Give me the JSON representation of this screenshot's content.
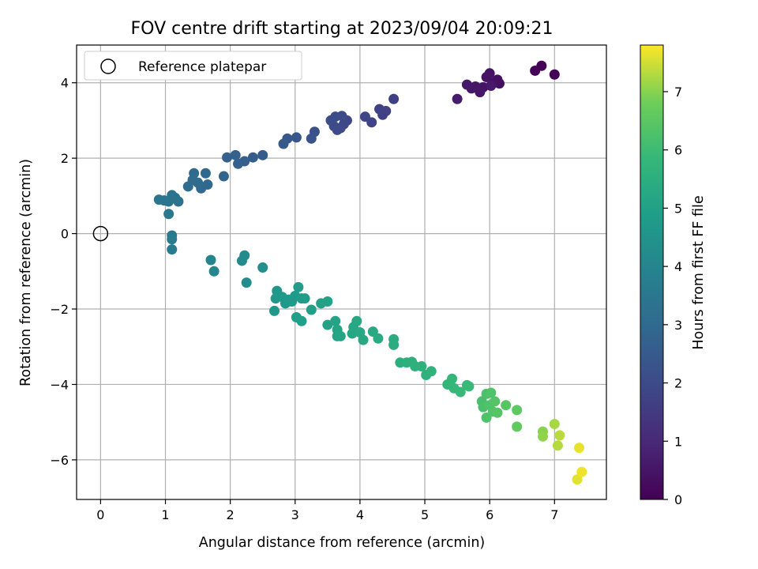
{
  "chart_data": {
    "type": "scatter",
    "title": "FOV centre drift starting at 2023/09/04 20:09:21",
    "xlabel": "Angular distance from reference (arcmin)",
    "ylabel": "Rotation from reference (arcmin)",
    "xlim": [
      -0.37,
      7.8
    ],
    "ylim": [
      -7.05,
      5.0
    ],
    "xticks": [
      0,
      1,
      2,
      3,
      4,
      5,
      6,
      7
    ],
    "yticks": [
      4,
      2,
      0,
      -2,
      -4,
      -6
    ],
    "grid": true,
    "legend": {
      "placement": "upper-left",
      "entries": [
        "Reference platepar"
      ]
    },
    "reference_point": {
      "x": 0,
      "y": 0
    },
    "colorbar": {
      "label": "Hours from first FF file",
      "range": [
        0,
        7.8
      ],
      "ticks": [
        0,
        1,
        2,
        3,
        4,
        5,
        6,
        7
      ],
      "colormap": "viridis"
    },
    "points": [
      {
        "x": 7.0,
        "y": 4.22,
        "h": 0.02
      },
      {
        "x": 6.8,
        "y": 4.45,
        "h": 0.05
      },
      {
        "x": 6.7,
        "y": 4.32,
        "h": 0.08
      },
      {
        "x": 6.15,
        "y": 3.98,
        "h": 0.35
      },
      {
        "x": 6.12,
        "y": 4.08,
        "h": 0.38
      },
      {
        "x": 6.05,
        "y": 4.0,
        "h": 0.4
      },
      {
        "x": 6.0,
        "y": 4.25,
        "h": 0.42
      },
      {
        "x": 5.95,
        "y": 4.15,
        "h": 0.45
      },
      {
        "x": 5.9,
        "y": 3.88,
        "h": 0.48
      },
      {
        "x": 5.85,
        "y": 3.75,
        "h": 0.5
      },
      {
        "x": 5.78,
        "y": 3.9,
        "h": 0.52
      },
      {
        "x": 5.72,
        "y": 3.85,
        "h": 0.55
      },
      {
        "x": 5.65,
        "y": 3.95,
        "h": 0.58
      },
      {
        "x": 5.5,
        "y": 3.57,
        "h": 0.65
      },
      {
        "x": 6.02,
        "y": 3.92,
        "h": 0.6
      },
      {
        "x": 4.52,
        "y": 3.57,
        "h": 1.65
      },
      {
        "x": 4.4,
        "y": 3.25,
        "h": 1.7
      },
      {
        "x": 4.35,
        "y": 3.15,
        "h": 1.72
      },
      {
        "x": 4.3,
        "y": 3.3,
        "h": 1.75
      },
      {
        "x": 4.18,
        "y": 2.95,
        "h": 1.8
      },
      {
        "x": 4.08,
        "y": 3.1,
        "h": 1.85
      },
      {
        "x": 3.8,
        "y": 3.0,
        "h": 1.9
      },
      {
        "x": 3.75,
        "y": 2.9,
        "h": 1.92
      },
      {
        "x": 3.7,
        "y": 2.8,
        "h": 1.95
      },
      {
        "x": 3.65,
        "y": 2.75,
        "h": 1.98
      },
      {
        "x": 3.6,
        "y": 2.85,
        "h": 2.0
      },
      {
        "x": 3.72,
        "y": 3.12,
        "h": 2.02
      },
      {
        "x": 3.62,
        "y": 3.1,
        "h": 2.05
      },
      {
        "x": 3.55,
        "y": 3.0,
        "h": 2.08
      },
      {
        "x": 3.3,
        "y": 2.7,
        "h": 2.2
      },
      {
        "x": 3.25,
        "y": 2.52,
        "h": 2.25
      },
      {
        "x": 3.02,
        "y": 2.55,
        "h": 2.35
      },
      {
        "x": 2.88,
        "y": 2.52,
        "h": 2.4
      },
      {
        "x": 2.82,
        "y": 2.38,
        "h": 2.45
      },
      {
        "x": 2.5,
        "y": 2.08,
        "h": 2.55
      },
      {
        "x": 2.35,
        "y": 2.02,
        "h": 2.6
      },
      {
        "x": 2.22,
        "y": 1.92,
        "h": 2.65
      },
      {
        "x": 2.12,
        "y": 1.85,
        "h": 2.7
      },
      {
        "x": 2.08,
        "y": 2.08,
        "h": 2.72
      },
      {
        "x": 1.95,
        "y": 2.02,
        "h": 2.78
      },
      {
        "x": 1.9,
        "y": 1.52,
        "h": 2.82
      },
      {
        "x": 1.62,
        "y": 1.6,
        "h": 2.95
      },
      {
        "x": 1.65,
        "y": 1.3,
        "h": 2.98
      },
      {
        "x": 1.55,
        "y": 1.2,
        "h": 3.0
      },
      {
        "x": 1.5,
        "y": 1.35,
        "h": 3.02
      },
      {
        "x": 1.44,
        "y": 1.6,
        "h": 3.05
      },
      {
        "x": 1.42,
        "y": 1.42,
        "h": 3.08
      },
      {
        "x": 1.35,
        "y": 1.25,
        "h": 3.12
      },
      {
        "x": 1.2,
        "y": 0.85,
        "h": 3.3
      },
      {
        "x": 1.15,
        "y": 0.95,
        "h": 3.32
      },
      {
        "x": 1.1,
        "y": 1.02,
        "h": 3.35
      },
      {
        "x": 1.05,
        "y": 0.85,
        "h": 3.38
      },
      {
        "x": 0.98,
        "y": 0.88,
        "h": 3.4
      },
      {
        "x": 0.9,
        "y": 0.9,
        "h": 3.42
      },
      {
        "x": 1.05,
        "y": 0.52,
        "h": 3.5
      },
      {
        "x": 1.1,
        "y": -0.05,
        "h": 3.6
      },
      {
        "x": 1.1,
        "y": -0.15,
        "h": 3.62
      },
      {
        "x": 1.1,
        "y": -0.42,
        "h": 3.65
      },
      {
        "x": 1.7,
        "y": -0.7,
        "h": 4.0
      },
      {
        "x": 1.75,
        "y": -1.0,
        "h": 4.05
      },
      {
        "x": 2.18,
        "y": -0.72,
        "h": 4.2
      },
      {
        "x": 2.22,
        "y": -0.58,
        "h": 4.22
      },
      {
        "x": 2.25,
        "y": -1.3,
        "h": 4.25
      },
      {
        "x": 2.5,
        "y": -0.9,
        "h": 4.35
      },
      {
        "x": 2.68,
        "y": -2.05,
        "h": 4.6
      },
      {
        "x": 2.72,
        "y": -1.52,
        "h": 4.62
      },
      {
        "x": 2.7,
        "y": -1.72,
        "h": 4.65
      },
      {
        "x": 2.8,
        "y": -1.68,
        "h": 4.68
      },
      {
        "x": 2.85,
        "y": -1.85,
        "h": 4.7
      },
      {
        "x": 2.9,
        "y": -1.75,
        "h": 4.72
      },
      {
        "x": 2.95,
        "y": -1.8,
        "h": 4.75
      },
      {
        "x": 3.0,
        "y": -1.65,
        "h": 4.78
      },
      {
        "x": 3.05,
        "y": -1.42,
        "h": 4.8
      },
      {
        "x": 3.1,
        "y": -1.72,
        "h": 4.82
      },
      {
        "x": 3.15,
        "y": -1.72,
        "h": 4.85
      },
      {
        "x": 3.02,
        "y": -2.22,
        "h": 4.88
      },
      {
        "x": 3.1,
        "y": -2.32,
        "h": 4.9
      },
      {
        "x": 3.25,
        "y": -2.02,
        "h": 4.95
      },
      {
        "x": 3.4,
        "y": -1.85,
        "h": 5.0
      },
      {
        "x": 3.5,
        "y": -1.8,
        "h": 5.02
      },
      {
        "x": 3.5,
        "y": -2.42,
        "h": 5.05
      },
      {
        "x": 3.62,
        "y": -2.32,
        "h": 5.08
      },
      {
        "x": 3.65,
        "y": -2.55,
        "h": 5.1
      },
      {
        "x": 3.65,
        "y": -2.72,
        "h": 5.12
      },
      {
        "x": 3.7,
        "y": -2.72,
        "h": 5.14
      },
      {
        "x": 3.88,
        "y": -2.65,
        "h": 5.2
      },
      {
        "x": 3.9,
        "y": -2.48,
        "h": 5.22
      },
      {
        "x": 3.95,
        "y": -2.32,
        "h": 5.24
      },
      {
        "x": 4.0,
        "y": -2.62,
        "h": 5.26
      },
      {
        "x": 4.05,
        "y": -2.82,
        "h": 5.28
      },
      {
        "x": 4.2,
        "y": -2.6,
        "h": 5.32
      },
      {
        "x": 4.28,
        "y": -2.78,
        "h": 5.35
      },
      {
        "x": 4.52,
        "y": -2.8,
        "h": 5.42
      },
      {
        "x": 4.52,
        "y": -2.95,
        "h": 5.44
      },
      {
        "x": 4.62,
        "y": -3.42,
        "h": 5.5
      },
      {
        "x": 4.72,
        "y": -3.42,
        "h": 5.52
      },
      {
        "x": 4.8,
        "y": -3.4,
        "h": 5.55
      },
      {
        "x": 4.85,
        "y": -3.52,
        "h": 5.58
      },
      {
        "x": 4.95,
        "y": -3.52,
        "h": 5.6
      },
      {
        "x": 5.02,
        "y": -3.75,
        "h": 5.62
      },
      {
        "x": 5.1,
        "y": -3.65,
        "h": 5.65
      },
      {
        "x": 5.35,
        "y": -4.0,
        "h": 5.8
      },
      {
        "x": 5.42,
        "y": -3.85,
        "h": 5.82
      },
      {
        "x": 5.45,
        "y": -4.1,
        "h": 5.85
      },
      {
        "x": 5.55,
        "y": -4.2,
        "h": 5.88
      },
      {
        "x": 5.65,
        "y": -4.02,
        "h": 5.9
      },
      {
        "x": 5.68,
        "y": -4.05,
        "h": 5.92
      },
      {
        "x": 5.88,
        "y": -4.45,
        "h": 6.2
      },
      {
        "x": 5.9,
        "y": -4.6,
        "h": 6.22
      },
      {
        "x": 5.95,
        "y": -4.25,
        "h": 6.25
      },
      {
        "x": 5.95,
        "y": -4.88,
        "h": 6.27
      },
      {
        "x": 6.0,
        "y": -4.55,
        "h": 6.3
      },
      {
        "x": 6.02,
        "y": -4.22,
        "h": 6.32
      },
      {
        "x": 6.05,
        "y": -4.72,
        "h": 6.35
      },
      {
        "x": 6.08,
        "y": -4.45,
        "h": 6.38
      },
      {
        "x": 6.12,
        "y": -4.75,
        "h": 6.4
      },
      {
        "x": 6.25,
        "y": -4.55,
        "h": 6.45
      },
      {
        "x": 6.42,
        "y": -4.68,
        "h": 6.55
      },
      {
        "x": 6.42,
        "y": -5.12,
        "h": 6.6
      },
      {
        "x": 6.82,
        "y": -5.25,
        "h": 7.0
      },
      {
        "x": 6.82,
        "y": -5.38,
        "h": 7.05
      },
      {
        "x": 7.0,
        "y": -5.05,
        "h": 7.2
      },
      {
        "x": 7.05,
        "y": -5.62,
        "h": 7.3
      },
      {
        "x": 7.08,
        "y": -5.35,
        "h": 7.35
      },
      {
        "x": 7.35,
        "y": -6.52,
        "h": 7.6
      },
      {
        "x": 7.38,
        "y": -5.68,
        "h": 7.65
      },
      {
        "x": 7.42,
        "y": -6.32,
        "h": 7.7
      }
    ]
  }
}
